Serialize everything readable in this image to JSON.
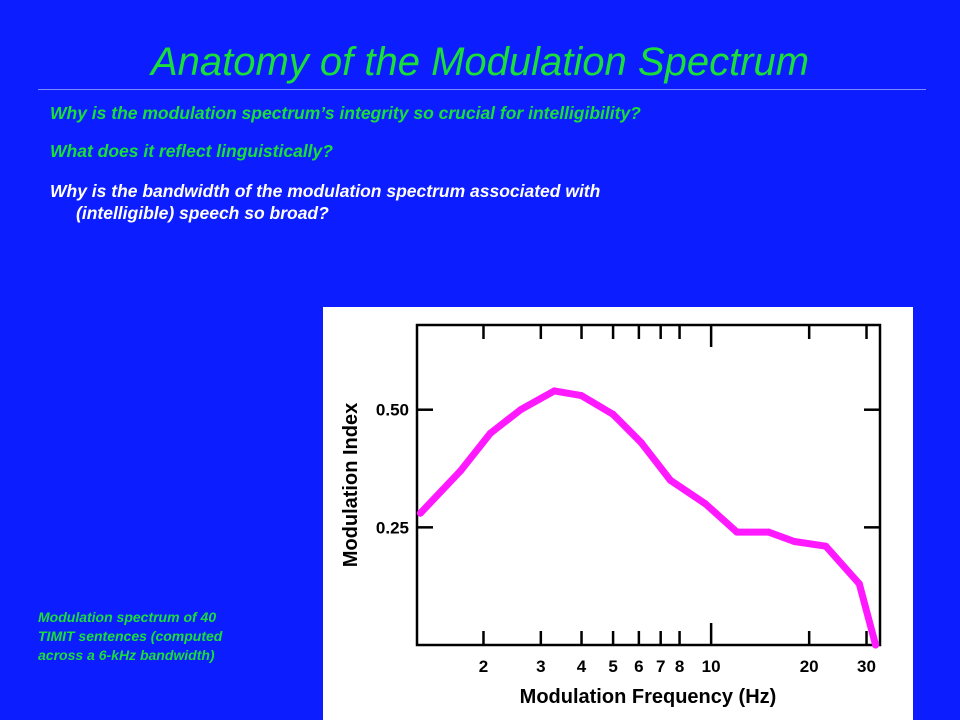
{
  "slide": {
    "title": "Anatomy of the Modulation Spectrum",
    "questions": [
      "Why is the modulation spectrum’s integrity so crucial for intelligibility?",
      "What does it reflect linguistically?"
    ],
    "question3_line1": "Why is the bandwidth of the modulation spectrum associated with",
    "question3_line2": "(intelligible) speech so broad?",
    "caption_lines": [
      "Modulation spectrum of 40",
      "TIMIT sentences (computed",
      "across a 6-kHz bandwidth)"
    ]
  },
  "chart_data": {
    "type": "line",
    "title": "",
    "xlabel": "Modulation Frequency (Hz)",
    "ylabel": "Modulation Index",
    "xscale": "log",
    "xlim": [
      1.25,
      33
    ],
    "ylim": [
      0.0,
      0.68
    ],
    "xticks": [
      2,
      3,
      4,
      5,
      6,
      7,
      8,
      10,
      20,
      30
    ],
    "xtick_labels": [
      "2",
      "3",
      "4",
      "5",
      "6",
      "7",
      "8",
      "10",
      "20",
      "30"
    ],
    "yticks": [
      0.25,
      0.5
    ],
    "ytick_labels": [
      "0.25",
      "0.50"
    ],
    "grid": false,
    "series": [
      {
        "color": "#ff19ff",
        "x": [
          1.28,
          1.7,
          2.1,
          2.6,
          3.3,
          4.0,
          5.0,
          6.1,
          7.5,
          9.6,
          12.0,
          15.0,
          18.0,
          22.5,
          28.5,
          32.0
        ],
        "y": [
          0.28,
          0.37,
          0.45,
          0.5,
          0.54,
          0.53,
          0.49,
          0.43,
          0.35,
          0.3,
          0.24,
          0.24,
          0.22,
          0.21,
          0.13,
          0.0
        ]
      }
    ]
  }
}
